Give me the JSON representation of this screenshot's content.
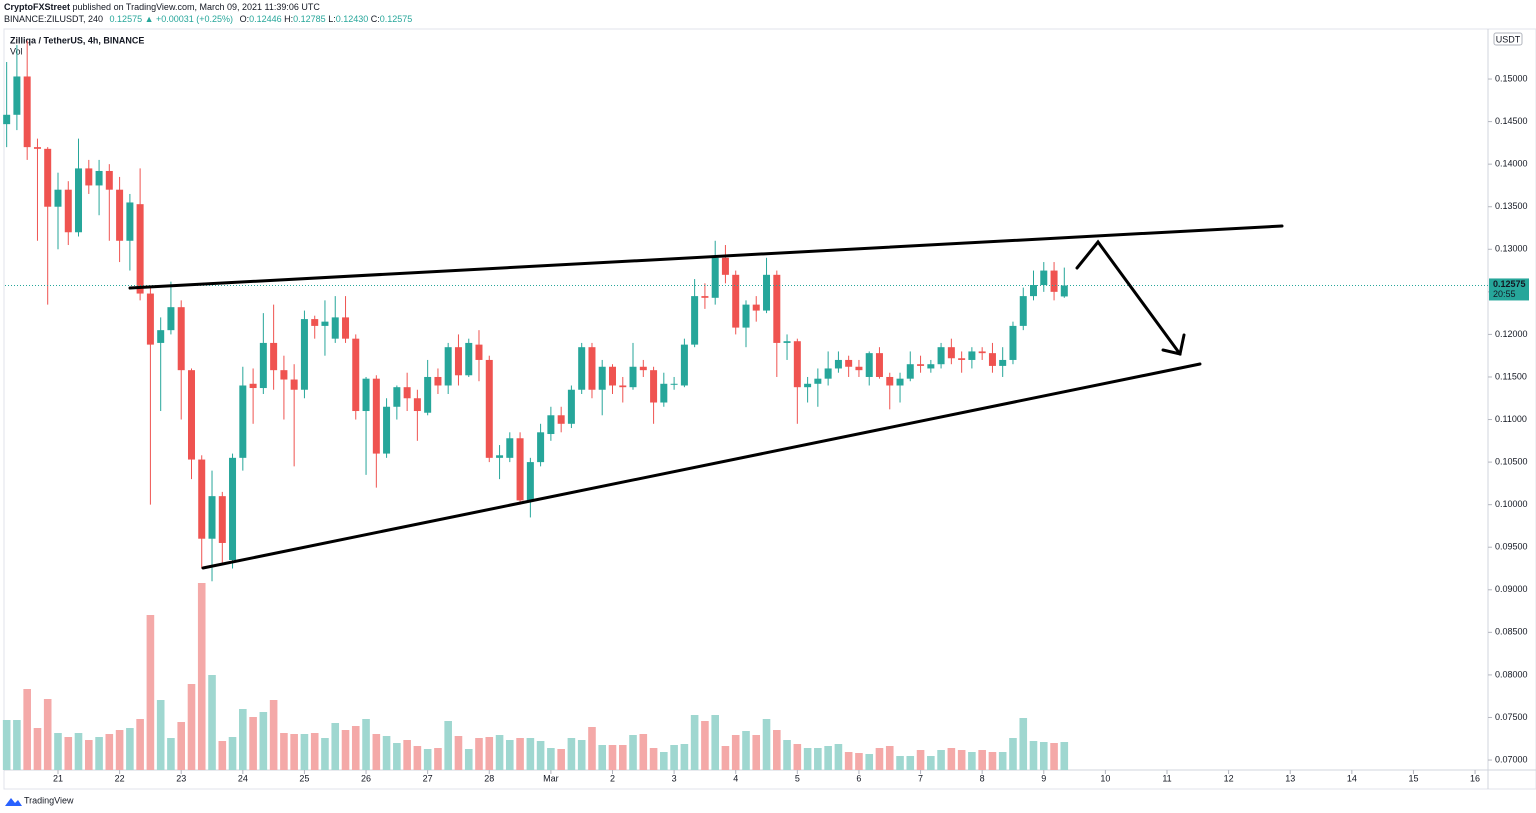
{
  "header": {
    "publisher": "CryptoFXStreet",
    "published": "published on TradingView.com, March 09, 2021 11:39:06 UTC",
    "symbol": "BINANCE:ZILUSDT, 240",
    "change": "0.12575 ▲ +0.00031 (+0.25%)",
    "ohlc": [
      [
        "O:",
        "0.12446"
      ],
      [
        "H:",
        "0.12785"
      ],
      [
        "L:",
        "0.12430"
      ],
      [
        "C:",
        "0.12575"
      ]
    ]
  },
  "footer": {
    "brand": "TradingView"
  },
  "chart_data": {
    "type": "candlestick",
    "title": "Zilliqa / TetherUS, 4h, BINANCE",
    "volume_label": "Vol",
    "currency": "USDT",
    "price_timer": "20:55",
    "up_color": "#26a69a",
    "down_color": "#ef5350",
    "up_volume_color": "#9fd7d0",
    "down_volume_color": "#f4a9a8",
    "x": [
      20.167,
      20.333,
      20.5,
      20.667,
      20.833,
      21,
      21.167,
      21.333,
      21.5,
      21.667,
      21.833,
      22,
      22.167,
      22.333,
      22.5,
      22.667,
      22.833,
      23,
      23.167,
      23.333,
      23.5,
      23.667,
      23.833,
      24,
      24.167,
      24.333,
      24.5,
      24.667,
      24.833,
      25,
      25.167,
      25.333,
      25.5,
      25.667,
      25.833,
      26,
      26.167,
      26.333,
      26.5,
      26.667,
      26.833,
      27,
      27.167,
      27.333,
      27.5,
      27.667,
      27.833,
      28,
      28.167,
      28.333,
      28.5,
      28.667,
      28.833,
      29,
      29.167,
      29.333,
      29.5,
      29.667,
      29.833,
      30,
      30.167,
      30.333,
      30.5,
      30.667,
      30.833,
      31,
      31.167,
      31.333,
      31.5,
      31.667,
      31.833,
      32,
      32.167,
      32.333,
      32.5,
      32.667,
      32.833,
      33,
      33.167,
      33.333,
      33.5,
      33.667,
      33.833,
      34,
      34.167,
      34.333,
      34.5,
      34.667,
      34.833,
      35,
      35.167,
      35.333,
      35.5,
      35.667,
      35.833,
      36,
      36.167,
      36.333,
      36.5,
      36.667,
      36.833,
      37,
      37.167,
      37.333
    ],
    "open": [
      0.1447,
      0.1458,
      0.1503,
      0.142,
      0.1418,
      0.135,
      0.137,
      0.132,
      0.1395,
      0.1375,
      0.1392,
      0.137,
      0.131,
      0.1353,
      0.1248,
      0.119,
      0.1205,
      0.1232,
      0.1158,
      0.1053,
      0.096,
      0.101,
      0.0935,
      0.1055,
      0.1142,
      0.1137,
      0.119,
      0.1158,
      0.1147,
      0.1135,
      0.1218,
      0.121,
      0.1195,
      0.122,
      0.1195,
      0.111,
      0.1148,
      0.106,
      0.1115,
      0.1138,
      0.1125,
      0.1108,
      0.115,
      0.114,
      0.1185,
      0.1152,
      0.1188,
      0.117,
      0.1055,
      0.1055,
      0.1078,
      0.1005,
      0.105,
      0.1083,
      0.1105,
      0.1095,
      0.1135,
      0.1185,
      0.1135,
      0.1162,
      0.114,
      0.1138,
      0.1162,
      0.1158,
      0.112,
      0.1142,
      0.114,
      0.1188,
      0.1245,
      0.1243,
      0.129,
      0.127,
      0.1208,
      0.1235,
      0.1228,
      0.127,
      0.119,
      0.1192,
      0.1138,
      0.1142,
      0.1148,
      0.116,
      0.117,
      0.1162,
      0.115,
      0.1178,
      0.115,
      0.114,
      0.1148,
      0.1165,
      0.116,
      0.1165,
      0.1185,
      0.1172,
      0.117,
      0.118,
      0.1178,
      0.1163,
      0.117,
      0.121,
      0.1245,
      0.1258,
      0.1275,
      0.12446
    ],
    "high": [
      0.152,
      0.154,
      0.1545,
      0.143,
      0.142,
      0.139,
      0.138,
      0.143,
      0.1405,
      0.1405,
      0.14,
      0.1385,
      0.1365,
      0.1395,
      0.1255,
      0.122,
      0.1262,
      0.124,
      0.116,
      0.1058,
      0.104,
      0.1015,
      0.106,
      0.1162,
      0.116,
      0.1225,
      0.1235,
      0.1175,
      0.1165,
      0.1228,
      0.1222,
      0.124,
      0.1245,
      0.1245,
      0.12,
      0.115,
      0.1152,
      0.1125,
      0.114,
      0.1155,
      0.1135,
      0.117,
      0.116,
      0.119,
      0.12,
      0.1195,
      0.1205,
      0.1175,
      0.107,
      0.1085,
      0.1085,
      0.1055,
      0.1095,
      0.1115,
      0.1115,
      0.114,
      0.119,
      0.119,
      0.117,
      0.1165,
      0.115,
      0.119,
      0.117,
      0.1162,
      0.1155,
      0.115,
      0.1195,
      0.1265,
      0.126,
      0.131,
      0.1305,
      0.1275,
      0.124,
      0.1245,
      0.129,
      0.1275,
      0.12,
      0.1195,
      0.115,
      0.116,
      0.118,
      0.118,
      0.1175,
      0.117,
      0.118,
      0.1185,
      0.1155,
      0.1155,
      0.118,
      0.1175,
      0.117,
      0.119,
      0.1195,
      0.118,
      0.1185,
      0.1185,
      0.119,
      0.1185,
      0.1215,
      0.1255,
      0.1275,
      0.1285,
      0.1285,
      0.12785
    ],
    "low": [
      0.142,
      0.144,
      0.1405,
      0.131,
      0.1235,
      0.13,
      0.1305,
      0.1315,
      0.1365,
      0.134,
      0.131,
      0.1285,
      0.1275,
      0.124,
      0.1,
      0.111,
      0.12,
      0.11,
      0.103,
      0.0925,
      0.091,
      0.093,
      0.0925,
      0.104,
      0.1095,
      0.113,
      0.1135,
      0.11,
      0.1045,
      0.1125,
      0.1195,
      0.1175,
      0.119,
      0.119,
      0.11,
      0.1035,
      0.102,
      0.1055,
      0.11,
      0.111,
      0.1075,
      0.1105,
      0.113,
      0.113,
      0.114,
      0.115,
      0.1145,
      0.105,
      0.103,
      0.105,
      0.1,
      0.0985,
      0.1045,
      0.1075,
      0.1085,
      0.109,
      0.113,
      0.1125,
      0.1105,
      0.113,
      0.112,
      0.1135,
      0.115,
      0.1095,
      0.1115,
      0.1135,
      0.1138,
      0.1185,
      0.123,
      0.1235,
      0.126,
      0.12,
      0.1185,
      0.1215,
      0.1225,
      0.115,
      0.117,
      0.1095,
      0.112,
      0.1115,
      0.114,
      0.1155,
      0.115,
      0.115,
      0.114,
      0.1148,
      0.1112,
      0.112,
      0.1145,
      0.1155,
      0.1155,
      0.116,
      0.1165,
      0.1155,
      0.116,
      0.117,
      0.1155,
      0.115,
      0.1165,
      0.1205,
      0.124,
      0.125,
      0.124,
      0.1243
    ],
    "close": [
      0.1458,
      0.1503,
      0.142,
      0.1418,
      0.135,
      0.137,
      0.132,
      0.1395,
      0.1375,
      0.1392,
      0.137,
      0.131,
      0.1355,
      0.1248,
      0.1188,
      0.1205,
      0.1232,
      0.1158,
      0.1053,
      0.096,
      0.101,
      0.0955,
      0.1055,
      0.114,
      0.1137,
      0.119,
      0.1158,
      0.1147,
      0.1135,
      0.1218,
      0.121,
      0.1215,
      0.122,
      0.1195,
      0.111,
      0.1148,
      0.106,
      0.1115,
      0.1138,
      0.1125,
      0.111,
      0.115,
      0.114,
      0.1185,
      0.1152,
      0.119,
      0.117,
      0.1055,
      0.1058,
      0.1078,
      0.1005,
      0.105,
      0.1085,
      0.1105,
      0.1095,
      0.1135,
      0.1185,
      0.1135,
      0.1162,
      0.114,
      0.1138,
      0.1162,
      0.1158,
      0.112,
      0.1142,
      0.1142,
      0.1188,
      0.1245,
      0.1243,
      0.129,
      0.127,
      0.1208,
      0.1235,
      0.1228,
      0.127,
      0.119,
      0.1192,
      0.1138,
      0.1142,
      0.1148,
      0.116,
      0.117,
      0.1162,
      0.1158,
      0.1178,
      0.115,
      0.114,
      0.1148,
      0.1165,
      0.1163,
      0.1165,
      0.1185,
      0.1172,
      0.117,
      0.118,
      0.1178,
      0.1163,
      0.117,
      0.121,
      0.1245,
      0.1258,
      0.1275,
      0.125,
      0.12575
    ],
    "volume": [
      50,
      50,
      81,
      42,
      71,
      37,
      33,
      37,
      30,
      33,
      36,
      40,
      42,
      51,
      155,
      70,
      32,
      48,
      86,
      187,
      95,
      29,
      33,
      61,
      53,
      58,
      70,
      37,
      36,
      36,
      37,
      32,
      47,
      40,
      44,
      51,
      36,
      34,
      27,
      30,
      24,
      21,
      22,
      49,
      34,
      21,
      32,
      33,
      35,
      30,
      32,
      32,
      29,
      22,
      21,
      32,
      30,
      43,
      25,
      25,
      25,
      35,
      36,
      22,
      18,
      25,
      26,
      55,
      49,
      55,
      24,
      35,
      39,
      35,
      51,
      40,
      30,
      26,
      22,
      22,
      24,
      26,
      18,
      17,
      16,
      22,
      24,
      14,
      14,
      20,
      14,
      20,
      22,
      20,
      18,
      20,
      18,
      18,
      32,
      52,
      29,
      28,
      27,
      28
    ],
    "xlim": [
      20.14,
      44.21
    ],
    "xticks": [
      21,
      22,
      23,
      24,
      25,
      26,
      27,
      28,
      {
        "value": 29,
        "label": "Mar"
      },
      {
        "value": 30,
        "label": "2"
      },
      {
        "value": 31,
        "label": "3"
      },
      {
        "value": 32,
        "label": "4"
      },
      {
        "value": 33,
        "label": "5"
      },
      {
        "value": 34,
        "label": "6"
      },
      {
        "value": 35,
        "label": "7"
      },
      {
        "value": 36,
        "label": "8"
      },
      {
        "value": 37,
        "label": "9"
      },
      {
        "value": 38,
        "label": "10"
      },
      {
        "value": 39,
        "label": "11"
      },
      {
        "value": 40,
        "label": "12"
      },
      {
        "value": 41,
        "label": "13"
      },
      {
        "value": 42,
        "label": "14"
      },
      {
        "value": 43,
        "label": "15"
      },
      {
        "value": 44,
        "label": "16"
      }
    ],
    "ylim": [
      0.06883,
      0.15576
    ],
    "yticks": [
      {
        "value": 0.07,
        "label": "0.07000"
      },
      {
        "value": 0.075,
        "label": "0.07500"
      },
      {
        "value": 0.08,
        "label": "0.08000"
      },
      {
        "value": 0.085,
        "label": "0.08500"
      },
      {
        "value": 0.09,
        "label": "0.09000"
      },
      {
        "value": 0.095,
        "label": "0.09500"
      },
      {
        "value": 0.1,
        "label": "0.10000"
      },
      {
        "value": 0.105,
        "label": "0.10500"
      },
      {
        "value": 0.11,
        "label": "0.11000"
      },
      {
        "value": 0.115,
        "label": "0.11500"
      },
      {
        "value": 0.12,
        "label": "0.12000"
      },
      {
        "value": 0.125,
        "label": "0.12500"
      },
      {
        "value": 0.13,
        "label": "0.13000"
      },
      {
        "value": 0.135,
        "label": "0.13500"
      },
      {
        "value": 0.14,
        "label": "0.14000"
      },
      {
        "value": 0.145,
        "label": "0.14500"
      },
      {
        "value": 0.15,
        "label": "0.15000"
      }
    ]
  }
}
